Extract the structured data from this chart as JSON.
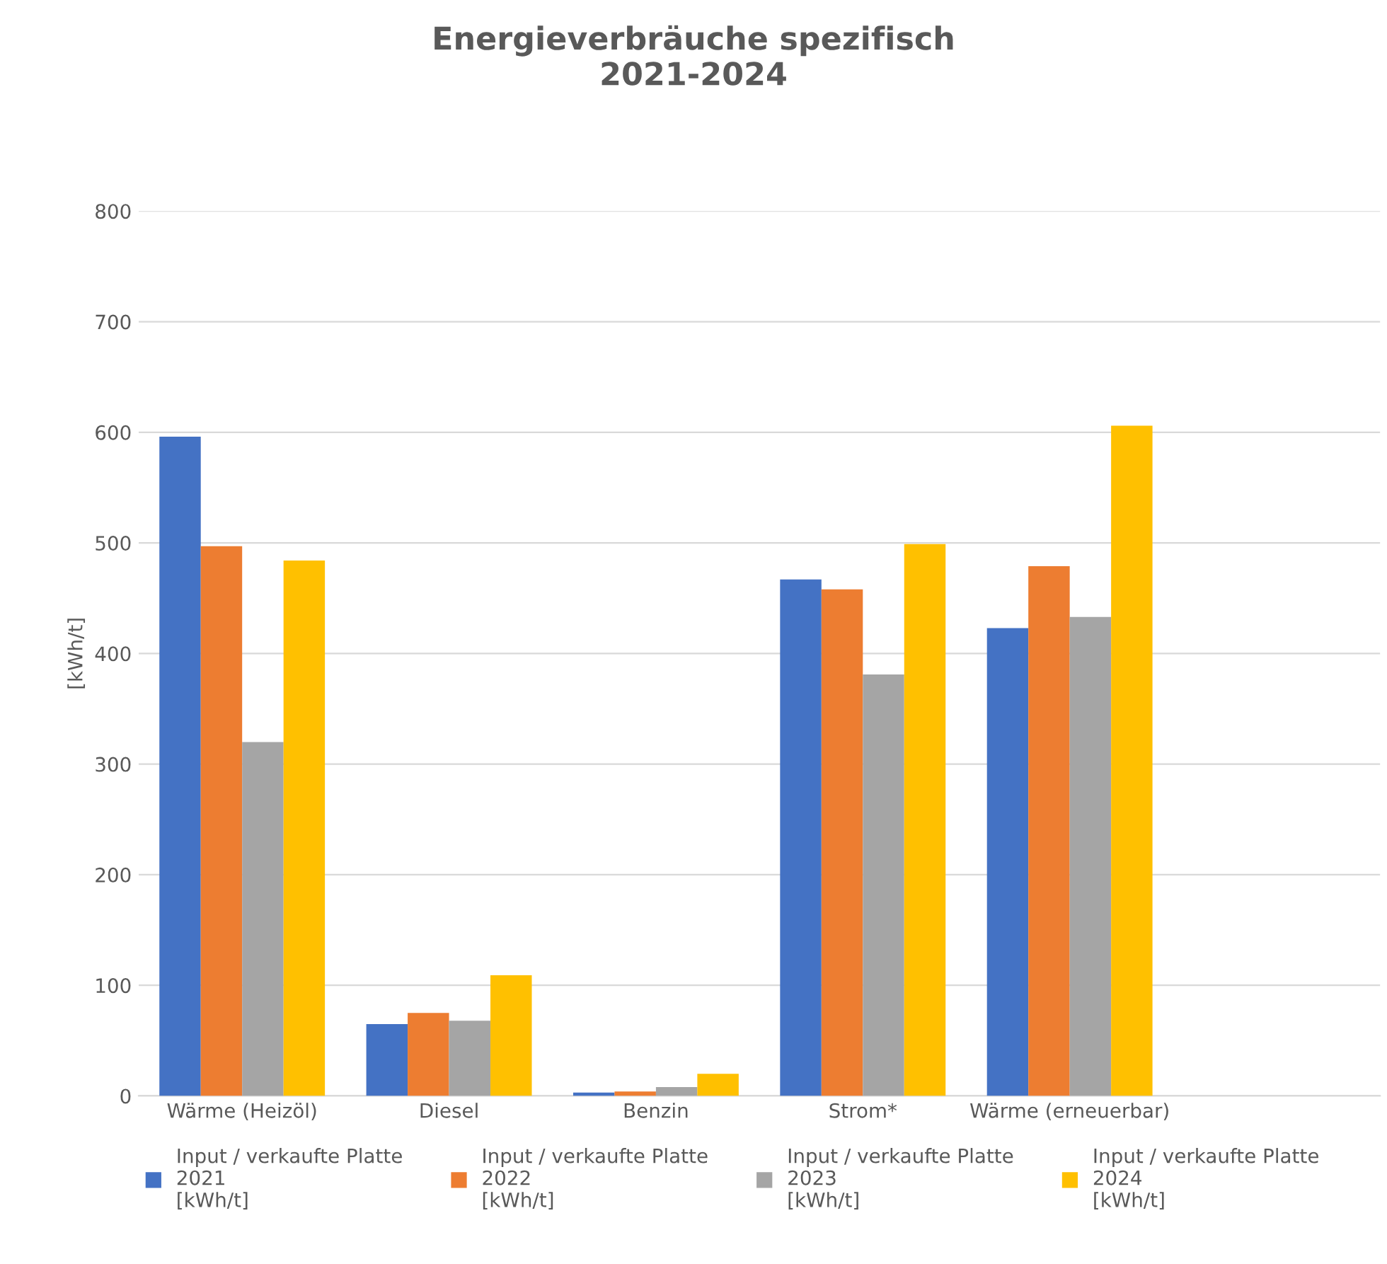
{
  "chart_data": {
    "type": "bar",
    "title": "Energieverbräuche spezifisch\n2021-2024",
    "ylabel": "[kWh/t]",
    "categories": [
      "Wärme (Heizöl)",
      "Diesel",
      "Benzin",
      "Strom*",
      "Wärme (erneuerbar)",
      null
    ],
    "series": [
      {
        "name": "Input / verkaufte Platte\n2021\n[kWh/t]",
        "color": "#4472c4",
        "values": [
          596,
          65,
          3,
          467,
          423,
          null
        ]
      },
      {
        "name": "Input / verkaufte Platte\n2022\n[kWh/t]",
        "color": "#ed7d31",
        "values": [
          497,
          75,
          4,
          458,
          479,
          null
        ]
      },
      {
        "name": "Input / verkaufte Platte\n2023\n[kWh/t]",
        "color": "#a5a5a5",
        "values": [
          320,
          68,
          8,
          381,
          433,
          null
        ]
      },
      {
        "name": "Input / verkaufte Platte\n2024\n[kWh/t]",
        "color": "#ffc000",
        "values": [
          484,
          109,
          20,
          499,
          606,
          null
        ]
      }
    ],
    "ylim": [
      0,
      800
    ],
    "yticks": [
      0,
      100,
      200,
      300,
      400,
      500,
      600,
      700,
      800
    ],
    "grid": "y",
    "legend": "bottom"
  }
}
